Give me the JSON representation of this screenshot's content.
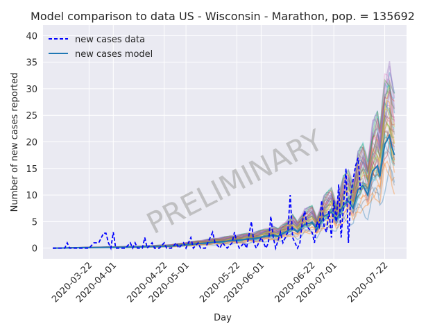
{
  "chart_data": {
    "type": "line",
    "title": "Model comparison to data US - Wisconsin - Marathon, pop. = 135692",
    "xlabel": "Day",
    "ylabel": "Number of new cases reported",
    "watermark": "PRELIMINARY",
    "x_range": [
      "2020-03-03",
      "2020-07-31"
    ],
    "ylim": [
      -2,
      42
    ],
    "x_ticks": [
      "2020-03-22",
      "2020-04-01",
      "2020-04-22",
      "2020-05-01",
      "2020-05-22",
      "2020-06-01",
      "2020-06-22",
      "2020-07-01",
      "2020-07-22"
    ],
    "y_ticks": [
      0,
      5,
      10,
      15,
      20,
      25,
      30,
      35,
      40
    ],
    "grid": true,
    "legend_position": "top-left",
    "background": "#eaeaf2",
    "series": [
      {
        "name": "new cases data",
        "style": "dashed",
        "color": "#0000ff",
        "points": [
          [
            "2020-03-07",
            0
          ],
          [
            "2020-03-12",
            0
          ],
          [
            "2020-03-13",
            1
          ],
          [
            "2020-03-14",
            0
          ],
          [
            "2020-03-20",
            0
          ],
          [
            "2020-03-22",
            0
          ],
          [
            "2020-03-24",
            1
          ],
          [
            "2020-03-26",
            1
          ],
          [
            "2020-03-28",
            2.8
          ],
          [
            "2020-03-29",
            2.8
          ],
          [
            "2020-03-30",
            1
          ],
          [
            "2020-03-31",
            0
          ],
          [
            "2020-04-01",
            3
          ],
          [
            "2020-04-02",
            0
          ],
          [
            "2020-04-03",
            0
          ],
          [
            "2020-04-06",
            0
          ],
          [
            "2020-04-08",
            1
          ],
          [
            "2020-04-09",
            0
          ],
          [
            "2020-04-10",
            1
          ],
          [
            "2020-04-11",
            0
          ],
          [
            "2020-04-13",
            0
          ],
          [
            "2020-04-14",
            2
          ],
          [
            "2020-04-15",
            0
          ],
          [
            "2020-04-17",
            1
          ],
          [
            "2020-04-18",
            0
          ],
          [
            "2020-04-20",
            0
          ],
          [
            "2020-04-22",
            1
          ],
          [
            "2020-04-23",
            0
          ],
          [
            "2020-04-25",
            0
          ],
          [
            "2020-04-27",
            1
          ],
          [
            "2020-04-28",
            0
          ],
          [
            "2020-04-30",
            1
          ],
          [
            "2020-05-01",
            0
          ],
          [
            "2020-05-03",
            2
          ],
          [
            "2020-05-04",
            0
          ],
          [
            "2020-05-06",
            1
          ],
          [
            "2020-05-07",
            0
          ],
          [
            "2020-05-09",
            0
          ],
          [
            "2020-05-10",
            1
          ],
          [
            "2020-05-12",
            3
          ],
          [
            "2020-05-13",
            1
          ],
          [
            "2020-05-15",
            0
          ],
          [
            "2020-05-16",
            1
          ],
          [
            "2020-05-18",
            0
          ],
          [
            "2020-05-20",
            1
          ],
          [
            "2020-05-21",
            3
          ],
          [
            "2020-05-22",
            1
          ],
          [
            "2020-05-23",
            0
          ],
          [
            "2020-05-25",
            1
          ],
          [
            "2020-05-26",
            0
          ],
          [
            "2020-05-28",
            5
          ],
          [
            "2020-05-29",
            1
          ],
          [
            "2020-05-30",
            0
          ],
          [
            "2020-06-01",
            2
          ],
          [
            "2020-06-02",
            1
          ],
          [
            "2020-06-03",
            0
          ],
          [
            "2020-06-04",
            1
          ],
          [
            "2020-06-05",
            6
          ],
          [
            "2020-06-06",
            2
          ],
          [
            "2020-06-07",
            0
          ],
          [
            "2020-06-09",
            3
          ],
          [
            "2020-06-10",
            1
          ],
          [
            "2020-06-12",
            3
          ],
          [
            "2020-06-13",
            10
          ],
          [
            "2020-06-14",
            2
          ],
          [
            "2020-06-16",
            0
          ],
          [
            "2020-06-17",
            1
          ],
          [
            "2020-06-18",
            5
          ],
          [
            "2020-06-19",
            7
          ],
          [
            "2020-06-20",
            4
          ],
          [
            "2020-06-22",
            3
          ],
          [
            "2020-06-23",
            1
          ],
          [
            "2020-06-24",
            5
          ],
          [
            "2020-06-25",
            4
          ],
          [
            "2020-06-26",
            9
          ],
          [
            "2020-06-27",
            4
          ],
          [
            "2020-06-28",
            3
          ],
          [
            "2020-06-29",
            7
          ],
          [
            "2020-06-30",
            2
          ],
          [
            "2020-07-01",
            9
          ],
          [
            "2020-07-02",
            5
          ],
          [
            "2020-07-03",
            12
          ],
          [
            "2020-07-04",
            2
          ],
          [
            "2020-07-05",
            8
          ],
          [
            "2020-07-06",
            15
          ],
          [
            "2020-07-07",
            1
          ],
          [
            "2020-07-08",
            10
          ],
          [
            "2020-07-09",
            13
          ],
          [
            "2020-07-10",
            15.5
          ],
          [
            "2020-07-11",
            17
          ],
          [
            "2020-07-12",
            11
          ]
        ]
      },
      {
        "name": "new cases model",
        "style": "solid",
        "color": "#1f77b4",
        "points": [
          [
            "2020-03-07",
            0
          ],
          [
            "2020-03-20",
            0.1
          ],
          [
            "2020-04-10",
            0.2
          ],
          [
            "2020-04-25",
            0.4
          ],
          [
            "2020-05-05",
            0.8
          ],
          [
            "2020-05-15",
            1.2
          ],
          [
            "2020-05-22",
            1.5
          ],
          [
            "2020-05-29",
            1.8
          ],
          [
            "2020-06-03",
            2.2
          ],
          [
            "2020-06-06",
            2.5
          ],
          [
            "2020-06-08",
            2.2
          ],
          [
            "2020-06-11",
            3.0
          ],
          [
            "2020-06-14",
            3.8
          ],
          [
            "2020-06-16",
            3.0
          ],
          [
            "2020-06-19",
            4.5
          ],
          [
            "2020-06-22",
            4.8
          ],
          [
            "2020-06-24",
            3.5
          ],
          [
            "2020-06-27",
            6.0
          ],
          [
            "2020-06-30",
            6.8
          ],
          [
            "2020-07-02",
            5.2
          ],
          [
            "2020-07-05",
            8.2
          ],
          [
            "2020-07-07",
            8.8
          ],
          [
            "2020-07-09",
            7.5
          ],
          [
            "2020-07-11",
            11.0
          ],
          [
            "2020-07-13",
            11.8
          ],
          [
            "2020-07-15",
            10.0
          ],
          [
            "2020-07-17",
            14.5
          ],
          [
            "2020-07-19",
            15.5
          ],
          [
            "2020-07-20",
            13.5
          ],
          [
            "2020-07-22",
            19.5
          ],
          [
            "2020-07-24",
            21.2
          ],
          [
            "2020-07-25",
            19.0
          ],
          [
            "2020-07-26",
            17.5
          ]
        ]
      }
    ]
  }
}
